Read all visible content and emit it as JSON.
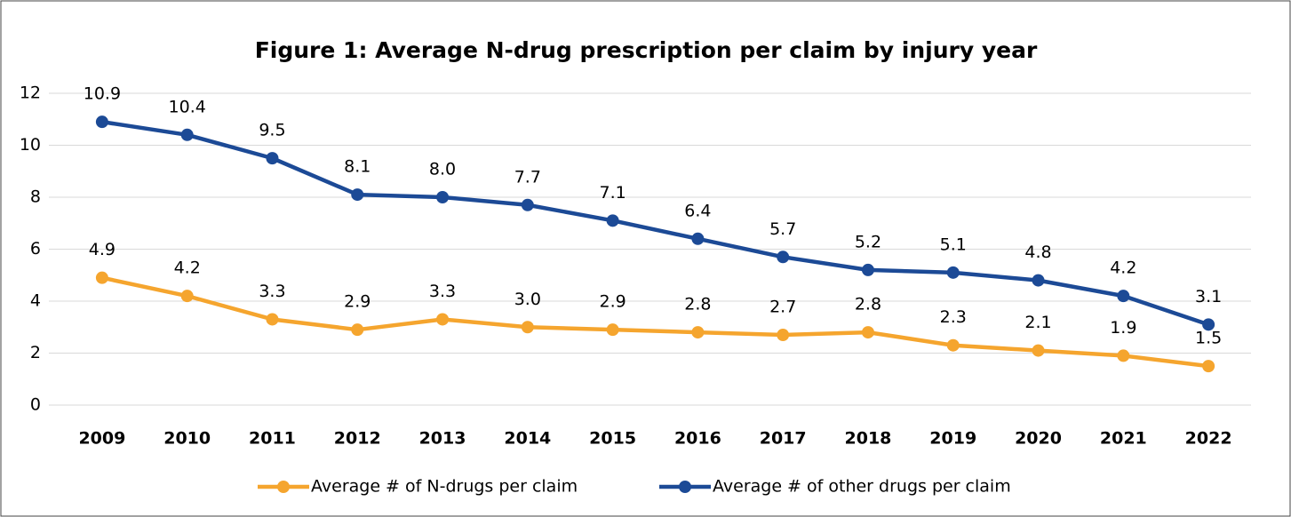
{
  "chart_data": {
    "type": "line",
    "title": "Figure 1: Average N-drug prescription per claim by injury year",
    "categories": [
      "2009",
      "2010",
      "2011",
      "2012",
      "2013",
      "2014",
      "2015",
      "2016",
      "2017",
      "2018",
      "2019",
      "2020",
      "2021",
      "2022"
    ],
    "series": [
      {
        "name": "Average # of N-drugs per claim",
        "color": "#f5a52e",
        "values": [
          4.9,
          4.2,
          3.3,
          2.9,
          3.3,
          3.0,
          2.9,
          2.8,
          2.7,
          2.8,
          2.3,
          2.1,
          1.9,
          1.5
        ],
        "value_labels": [
          "4.9",
          "4.2",
          "3.3",
          "2.9",
          "3.3",
          "3.0",
          "2.9",
          "2.8",
          "2.7",
          "2.8",
          "2.3",
          "2.1",
          "1.9",
          "1.5"
        ]
      },
      {
        "name": "Average # of other drugs per claim",
        "color": "#1c4a96",
        "values": [
          10.9,
          10.4,
          9.5,
          8.1,
          8.0,
          7.7,
          7.1,
          6.4,
          5.7,
          5.2,
          5.1,
          4.8,
          4.2,
          3.1
        ],
        "value_labels": [
          "10.9",
          "10.4",
          "9.5",
          "8.1",
          "8.0",
          "7.7",
          "7.1",
          "6.4",
          "5.7",
          "5.2",
          "5.1",
          "4.8",
          "4.2",
          "3.1"
        ]
      }
    ],
    "ylim": [
      0,
      12
    ],
    "yticks": [
      0,
      2,
      4,
      6,
      8,
      10,
      12
    ],
    "grid": true,
    "legend": "bottom"
  }
}
